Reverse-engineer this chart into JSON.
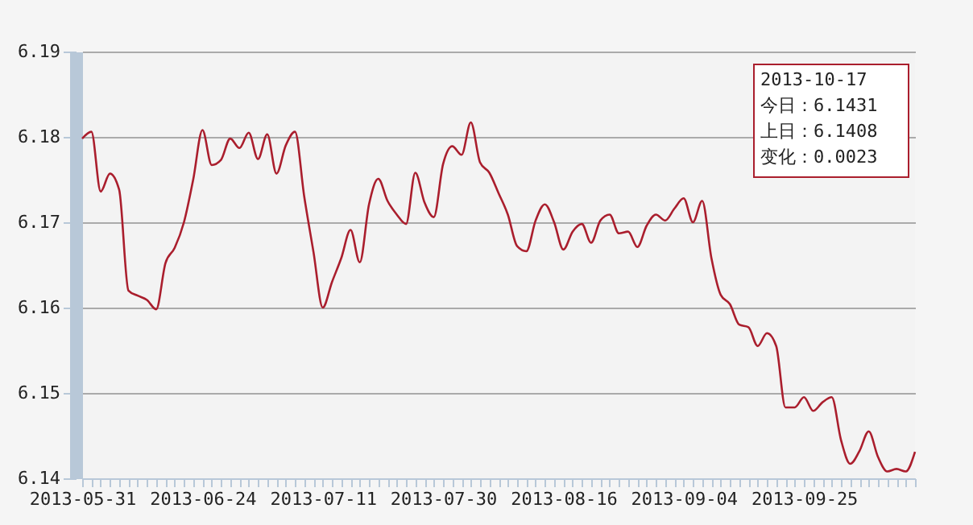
{
  "chart_data": {
    "type": "line",
    "categories": [
      "2013-05-31",
      null,
      null,
      null,
      null,
      null,
      null,
      null,
      null,
      null,
      null,
      null,
      null,
      "2013-06-24",
      null,
      null,
      null,
      null,
      null,
      null,
      null,
      null,
      null,
      null,
      null,
      null,
      "2013-07-11",
      null,
      null,
      null,
      null,
      null,
      null,
      null,
      null,
      null,
      null,
      null,
      null,
      "2013-07-30",
      null,
      null,
      null,
      null,
      null,
      null,
      null,
      null,
      null,
      null,
      null,
      null,
      "2013-08-16",
      null,
      null,
      null,
      null,
      null,
      null,
      null,
      null,
      null,
      null,
      null,
      null,
      "2013-09-04",
      null,
      null,
      null,
      null,
      null,
      null,
      null,
      null,
      null,
      null,
      null,
      null,
      "2013-09-25",
      null,
      null,
      null,
      null,
      null,
      null,
      null,
      null,
      null,
      null,
      null,
      null
    ],
    "series": [
      {
        "color": "#aa1e2d",
        "values": [
          6.1798,
          6.1806,
          6.1736,
          6.1757,
          6.1738,
          6.162,
          6.1614,
          6.1609,
          6.1598,
          6.1652,
          6.167,
          6.17,
          6.175,
          6.1808,
          6.1767,
          6.1773,
          6.1798,
          6.1787,
          6.1805,
          6.1774,
          6.1803,
          6.1757,
          6.179,
          6.1806,
          6.173,
          6.1665,
          6.16,
          6.163,
          6.1658,
          6.1691,
          6.1653,
          6.1721,
          6.1751,
          6.1725,
          6.1709,
          6.1698,
          6.1758,
          6.1723,
          6.1706,
          6.1768,
          6.1789,
          6.1779,
          6.1817,
          6.177,
          6.1758,
          6.1734,
          6.1709,
          6.1672,
          6.1666,
          6.1702,
          6.1721,
          6.17,
          6.1668,
          6.1689,
          6.1698,
          6.1676,
          6.1702,
          6.1709,
          6.1687,
          6.1689,
          6.1671,
          6.1696,
          6.1709,
          6.1702,
          6.1716,
          6.1728,
          6.17,
          6.1725,
          6.1658,
          6.1615,
          6.1604,
          6.158,
          6.1577,
          6.1555,
          6.157,
          6.1555,
          6.1483,
          6.1483,
          6.1495,
          6.1479,
          6.1489,
          6.1495,
          6.1445,
          6.1417,
          6.1432,
          6.1455,
          6.1425,
          6.1408,
          6.1411,
          6.1408,
          6.1431
        ]
      }
    ],
    "ylim": [
      6.14,
      6.19
    ],
    "yticks": [
      6.14,
      6.15,
      6.16,
      6.17,
      6.18,
      6.19
    ],
    "grid": "y",
    "marker": "none",
    "annotations": [
      "2013-10-17",
      "今日：6.1431",
      "上日：6.1408",
      "变化：0.0023"
    ]
  }
}
